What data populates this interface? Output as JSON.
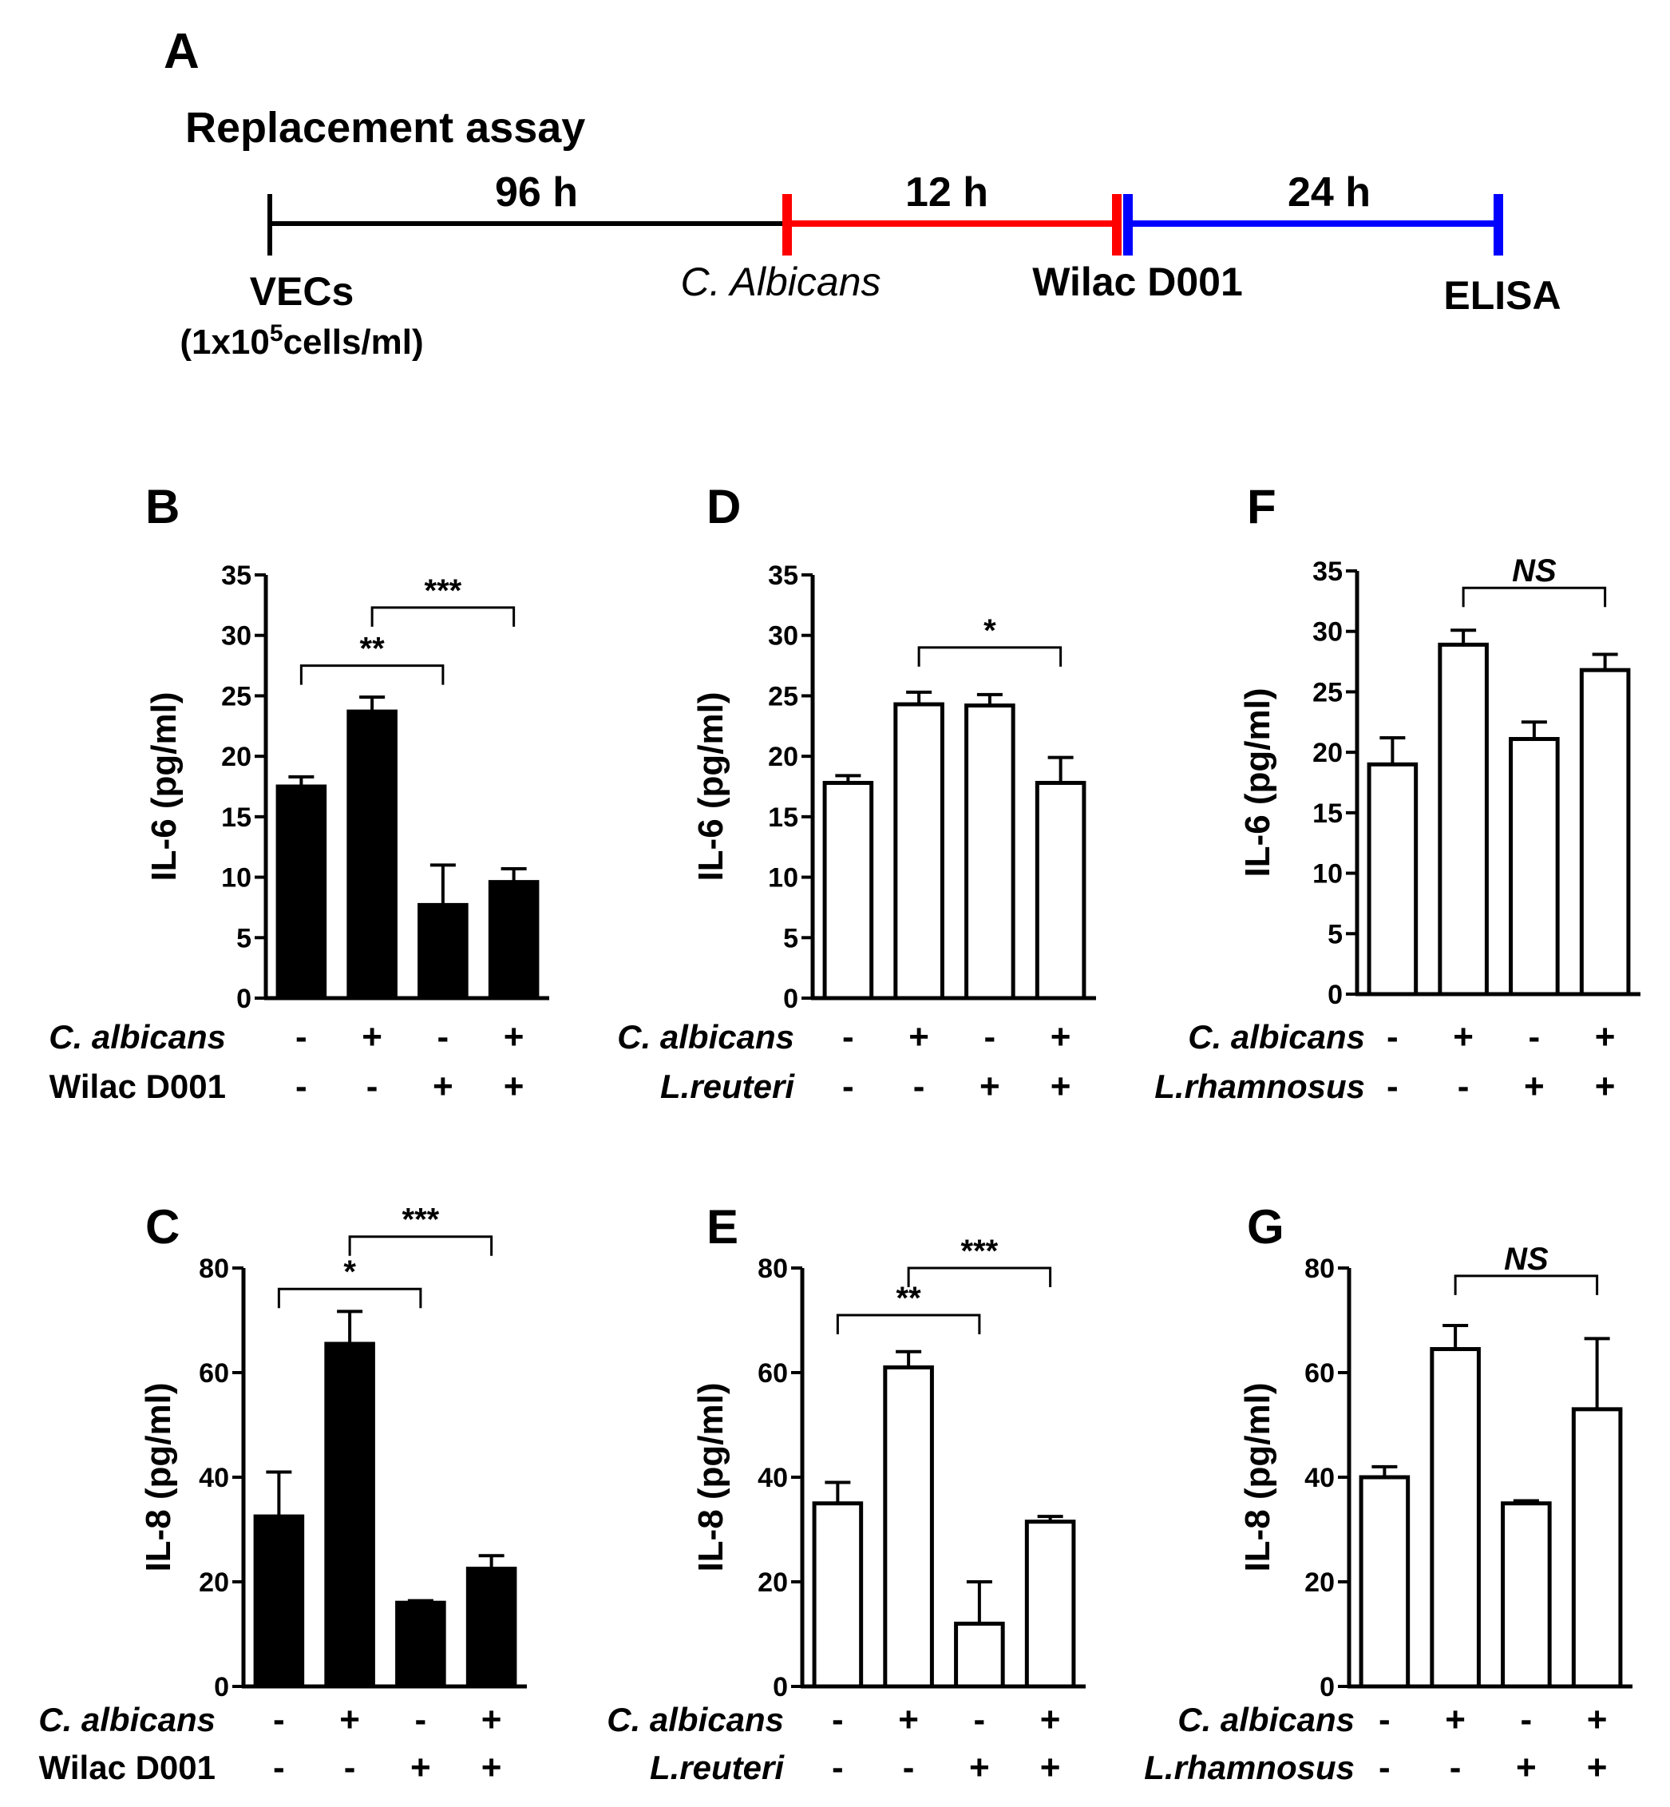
{
  "panel_a": {
    "letter": "A",
    "title": "Replacement assay",
    "segments": [
      {
        "duration": "96 h",
        "color": "#000000"
      },
      {
        "duration": "12 h",
        "color": "#ff0000"
      },
      {
        "duration": "24 h",
        "color": "#0000ff"
      }
    ],
    "labels": {
      "vecs": "VECs",
      "conc_prefix": "(1x10",
      "conc_sup": "5",
      "conc_suffix": "cells/ml)",
      "calbicans": "C. Albicans",
      "wilac": "Wilac D001",
      "elisa": "ELISA"
    }
  },
  "colors": {
    "filled": "#000000",
    "open": "#ffffff",
    "stroke": "#000000"
  },
  "chart_data": [
    {
      "id": "B",
      "letter": "B",
      "type": "bar",
      "ylabel": "IL-6 (pg/ml)",
      "ylim": [
        0,
        35
      ],
      "yticks": [
        0,
        5,
        10,
        15,
        20,
        25,
        30,
        35
      ],
      "fill": "filled",
      "values": [
        17.5,
        23.7,
        7.7,
        9.6
      ],
      "errors": [
        0.8,
        1.2,
        3.3,
        1.1
      ],
      "row1_label": "C. albicans",
      "row1_italic": true,
      "row1": [
        "-",
        "+",
        "-",
        "+"
      ],
      "row2_label": "Wilac D001",
      "row2_italic": false,
      "row2": [
        "-",
        "-",
        "+",
        "+"
      ],
      "brackets": [
        {
          "from": 0,
          "to": 2,
          "y": 27.5,
          "label": "**"
        },
        {
          "from": 1,
          "to": 3,
          "y": 32.3,
          "label": "***"
        }
      ]
    },
    {
      "id": "C",
      "letter": "C",
      "type": "bar",
      "ylabel": "IL-8 (pg/ml)",
      "ylim": [
        0,
        80
      ],
      "yticks": [
        0,
        20,
        40,
        60,
        80
      ],
      "fill": "filled",
      "values": [
        32.5,
        65.5,
        16,
        22.5
      ],
      "errors": [
        8.5,
        6.2,
        0.4,
        2.5
      ],
      "row1_label": "C. albicans",
      "row1_italic": true,
      "row1": [
        "-",
        "+",
        "-",
        "+"
      ],
      "row2_label": "Wilac D001",
      "row2_italic": false,
      "row2": [
        "-",
        "-",
        "+",
        "+"
      ],
      "brackets": [
        {
          "from": 0,
          "to": 2,
          "y": 76,
          "label": "*"
        },
        {
          "from": 1,
          "to": 3,
          "y": 86,
          "label": "***"
        }
      ]
    },
    {
      "id": "D",
      "letter": "D",
      "type": "bar",
      "ylabel": "IL-6 (pg/ml)",
      "ylim": [
        0,
        35
      ],
      "yticks": [
        0,
        5,
        10,
        15,
        20,
        25,
        30,
        35
      ],
      "fill": "open",
      "values": [
        17.8,
        24.3,
        24.2,
        17.8
      ],
      "errors": [
        0.6,
        1.0,
        0.9,
        2.1
      ],
      "row1_label": "C. albicans",
      "row1_italic": true,
      "row1": [
        "-",
        "+",
        "-",
        "+"
      ],
      "row2_label": "L.reuteri",
      "row2_italic": true,
      "row2": [
        "-",
        "-",
        "+",
        "+"
      ],
      "brackets": [
        {
          "from": 1,
          "to": 3,
          "y": 29.0,
          "label": "*"
        }
      ]
    },
    {
      "id": "E",
      "letter": "E",
      "type": "bar",
      "ylabel": "IL-8 (pg/ml)",
      "ylim": [
        0,
        80
      ],
      "yticks": [
        0,
        20,
        40,
        60,
        80
      ],
      "fill": "open",
      "values": [
        35,
        61,
        12,
        31.5
      ],
      "errors": [
        4,
        3,
        8,
        1
      ],
      "row1_label": "C. albicans",
      "row1_italic": true,
      "row1": [
        "-",
        "+",
        "-",
        "+"
      ],
      "row2_label": "L.reuteri",
      "row2_italic": true,
      "row2": [
        "-",
        "-",
        "+",
        "+"
      ],
      "brackets": [
        {
          "from": 0,
          "to": 2,
          "y": 71,
          "label": "**"
        },
        {
          "from": 1,
          "to": 3,
          "y": 80,
          "label": "***"
        }
      ]
    },
    {
      "id": "F",
      "letter": "F",
      "type": "bar",
      "ylabel": "IL-6 (pg/ml)",
      "ylim": [
        0,
        35
      ],
      "yticks": [
        0,
        5,
        10,
        15,
        20,
        25,
        30,
        35
      ],
      "fill": "open",
      "values": [
        19.0,
        28.9,
        21.1,
        26.8
      ],
      "errors": [
        2.2,
        1.2,
        1.4,
        1.3
      ],
      "row1_label": "C. albicans",
      "row1_italic": true,
      "row1": [
        "-",
        "+",
        "-",
        "+"
      ],
      "row2_label": "L.rhamnosus",
      "row2_italic": true,
      "row2": [
        "-",
        "-",
        "+",
        "+"
      ],
      "brackets": [
        {
          "from": 1,
          "to": 3,
          "y": 33.6,
          "label": "NS",
          "italic": true
        }
      ]
    },
    {
      "id": "G",
      "letter": "G",
      "type": "bar",
      "ylabel": "IL-8 (pg/ml)",
      "ylim": [
        0,
        80
      ],
      "yticks": [
        0,
        20,
        40,
        60,
        80
      ],
      "fill": "open",
      "values": [
        40,
        64.5,
        35,
        53
      ],
      "errors": [
        2,
        4.5,
        0.5,
        13.5
      ],
      "row1_label": "C. albicans",
      "row1_italic": true,
      "row1": [
        "-",
        "+",
        "-",
        "+"
      ],
      "row2_label": "L.rhamnosus",
      "row2_italic": true,
      "row2": [
        "-",
        "-",
        "+",
        "+"
      ],
      "brackets": [
        {
          "from": 1,
          "to": 3,
          "y": 78.5,
          "label": "NS",
          "italic": true
        }
      ]
    }
  ]
}
